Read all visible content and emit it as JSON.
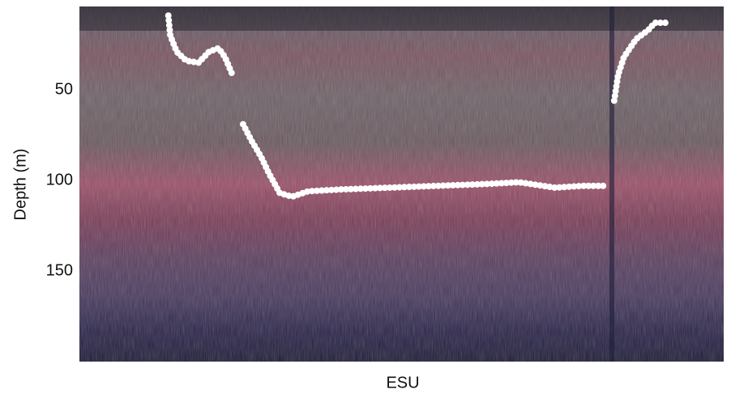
{
  "chart_data": {
    "type": "line",
    "ylabel": "Depth (m)",
    "xlabel": "ESU",
    "x": [
      13.8,
      14.1,
      15.1,
      16.6,
      18.5,
      20.1,
      21.6,
      22.6,
      23.9,
      null,
      25.4,
      26.7,
      28.2,
      29.4,
      31.1,
      33.0,
      35.5,
      40.5,
      48.1,
      55.6,
      63.1,
      68.2,
      73.8,
      78.2,
      82.0,
      null,
      83.0,
      83.6,
      84.5,
      86.4,
      88.3,
      89.3,
      91.5
    ],
    "values": [
      9,
      20,
      29,
      34,
      35,
      29,
      27,
      32,
      43,
      null,
      69,
      78,
      87,
      96,
      107,
      109,
      106,
      105,
      104,
      103,
      102,
      101,
      104,
      103,
      103,
      null,
      56,
      42,
      32,
      22,
      17,
      13,
      13
    ],
    "color": "#ffffff",
    "xlim": [
      0,
      100
    ],
    "ylim": [
      4,
      200
    ],
    "y_inverted": true,
    "yticks": [
      50,
      100,
      150
    ]
  }
}
